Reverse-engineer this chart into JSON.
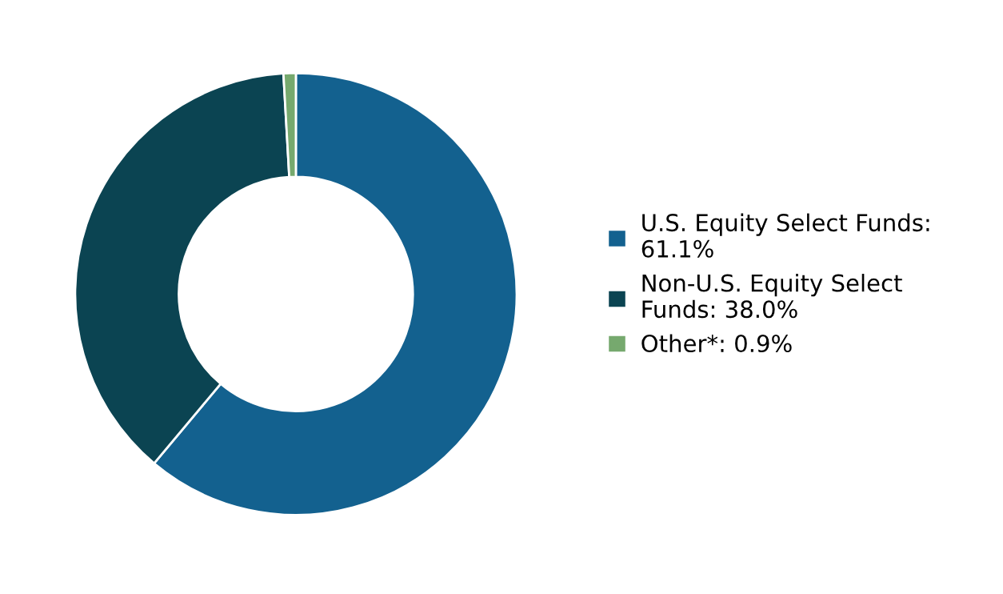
{
  "chart_data": {
    "type": "donut",
    "categories": [
      "U.S. Equity Select Funds: 61.1%",
      "Non-U.S. Equity Select Funds: 38.0%",
      "Other*: 0.9%"
    ],
    "values": [
      61.1,
      38.0,
      0.9
    ],
    "colors": [
      "#13618f",
      "#0b4452",
      "#76a96e"
    ],
    "legend": "right"
  }
}
